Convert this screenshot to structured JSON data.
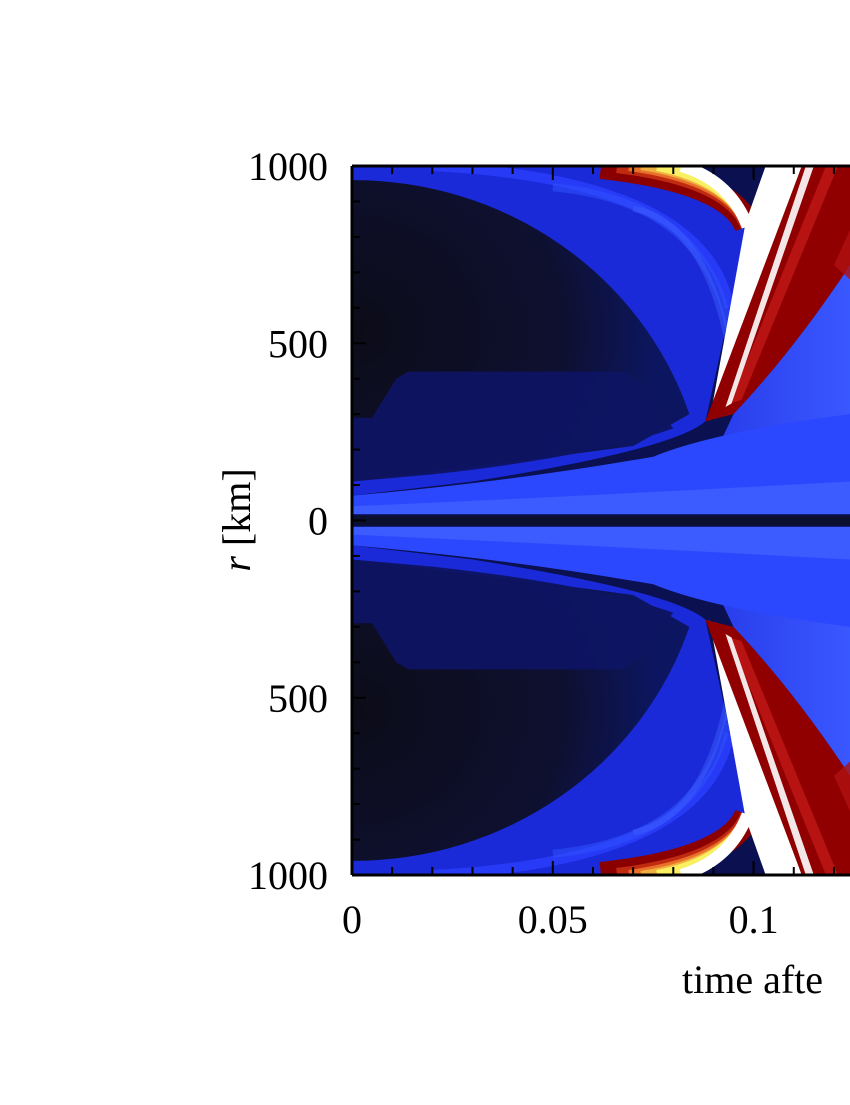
{
  "chart_data": {
    "type": "heatmap",
    "title": "",
    "xlabel": "time afte",
    "ylabel_italic": "r",
    "ylabel_unit": "[km]",
    "x_ticks": [
      {
        "value": 0,
        "label": "0"
      },
      {
        "value": 0.05,
        "label": "0.05"
      },
      {
        "value": 0.1,
        "label": "0.1"
      }
    ],
    "y_ticks": [
      {
        "value": 1000,
        "label": "1000"
      },
      {
        "value": 500,
        "label": "500"
      },
      {
        "value": 0,
        "label": "0"
      },
      {
        "value": -500,
        "label": "500"
      },
      {
        "value": -1000,
        "label": "1000"
      }
    ],
    "xlim": [
      0,
      0.124
    ],
    "ylim": [
      -1000,
      1000
    ],
    "colormap": [
      "#101020",
      "#1018a0",
      "#2a48ff",
      "#8a0000",
      "#e8602a",
      "#f8f060",
      "#ffffff"
    ],
    "features": {
      "shock_front_radius_at_t0.1": 850,
      "shock_junction_time": 0.088,
      "shock_junction_radius": 280,
      "inner_plateau_radius": 420,
      "inner_plateau_end_time": 0.068,
      "midplane_radius": 0
    }
  }
}
